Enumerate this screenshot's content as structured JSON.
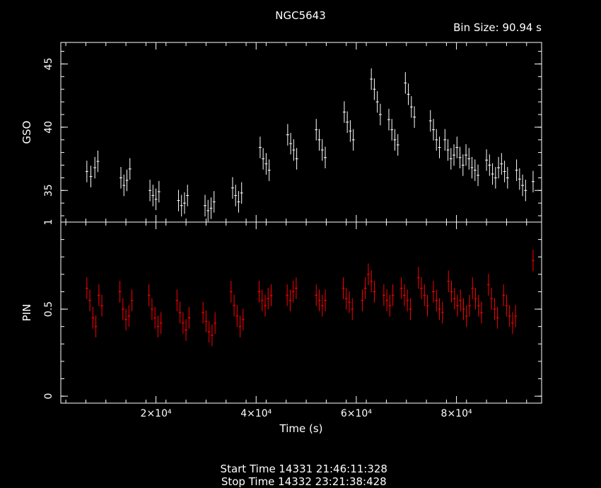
{
  "header": {
    "title": "NGC5643",
    "bin_size": "Bin Size: 90.94 s"
  },
  "footer": {
    "start_time": "Start Time 14331 21:46:11:328",
    "stop_time": "Stop Time 14332 23:21:38:428"
  },
  "colors": {
    "background": "#000000",
    "gso": "#ffffff",
    "pin": "#ff0000",
    "axes": "#ffffff"
  },
  "chart_data": [
    {
      "type": "scatter",
      "ylabel": "GSO",
      "xlabel": "",
      "ylim": [
        32.5,
        46.7
      ],
      "xlim": [
        1000,
        97000
      ],
      "yticks": [
        35,
        40,
        45
      ],
      "series": [
        {
          "points": [
            [
              6200,
              36.5
            ],
            [
              7000,
              36.1
            ],
            [
              7800,
              36.8
            ],
            [
              8400,
              37.3
            ],
            [
              13000,
              36.0
            ],
            [
              13600,
              35.4
            ],
            [
              14200,
              35.8
            ],
            [
              14800,
              36.7
            ],
            [
              18800,
              35.0
            ],
            [
              19400,
              34.6
            ],
            [
              20000,
              34.3
            ],
            [
              20600,
              34.9
            ],
            [
              24500,
              34.2
            ],
            [
              25100,
              33.8
            ],
            [
              25700,
              34.0
            ],
            [
              26300,
              34.6
            ],
            [
              29800,
              33.8
            ],
            [
              30400,
              33.4
            ],
            [
              31000,
              33.6
            ],
            [
              31600,
              34.1
            ],
            [
              35300,
              35.2
            ],
            [
              35900,
              34.6
            ],
            [
              36500,
              34.1
            ],
            [
              37100,
              34.8
            ],
            [
              40800,
              38.4
            ],
            [
              41400,
              37.5
            ],
            [
              42000,
              37.1
            ],
            [
              42600,
              36.6
            ],
            [
              46300,
              39.4
            ],
            [
              46900,
              38.7
            ],
            [
              47500,
              38.2
            ],
            [
              48100,
              37.5
            ],
            [
              52000,
              39.8
            ],
            [
              52600,
              39.0
            ],
            [
              53200,
              38.2
            ],
            [
              53800,
              37.6
            ],
            [
              57600,
              41.2
            ],
            [
              58200,
              40.4
            ],
            [
              58800,
              39.7
            ],
            [
              59400,
              39.0
            ],
            [
              63000,
              43.8
            ],
            [
              63600,
              43.0
            ],
            [
              64200,
              42.0
            ],
            [
              64800,
              41.0
            ],
            [
              66500,
              40.6
            ],
            [
              67100,
              39.8
            ],
            [
              67700,
              39.0
            ],
            [
              68300,
              38.6
            ],
            [
              69800,
              43.5
            ],
            [
              70400,
              42.6
            ],
            [
              71000,
              41.6
            ],
            [
              71600,
              40.8
            ],
            [
              74800,
              40.5
            ],
            [
              75400,
              39.8
            ],
            [
              76000,
              39.0
            ],
            [
              76600,
              38.4
            ],
            [
              77700,
              39.0
            ],
            [
              78300,
              38.2
            ],
            [
              78900,
              37.5
            ],
            [
              79500,
              37.8
            ],
            [
              80100,
              38.4
            ],
            [
              80700,
              37.6
            ],
            [
              81300,
              37.0
            ],
            [
              81900,
              37.8
            ],
            [
              82500,
              37.5
            ],
            [
              83100,
              36.8
            ],
            [
              83700,
              36.6
            ],
            [
              84300,
              36.2
            ],
            [
              86000,
              37.4
            ],
            [
              86600,
              37.0
            ],
            [
              87200,
              36.3
            ],
            [
              87800,
              36.0
            ],
            [
              88400,
              36.8
            ],
            [
              89000,
              37.1
            ],
            [
              89600,
              36.5
            ],
            [
              90200,
              36.0
            ],
            [
              92000,
              36.6
            ],
            [
              92600,
              35.9
            ],
            [
              93200,
              35.4
            ],
            [
              93800,
              35.0
            ],
            [
              95300,
              35.7
            ]
          ]
        }
      ]
    },
    {
      "type": "scatter",
      "ylabel": "PIN",
      "xlabel": "Time (s)",
      "ylim": [
        -0.04,
        1.0
      ],
      "xlim": [
        1000,
        97000
      ],
      "yticks": [
        0,
        0.5,
        1
      ],
      "xticks": [
        20000,
        40000,
        60000,
        80000
      ],
      "xticklabels": [
        "2×10⁴",
        "4×10⁴",
        "6×10⁴",
        "8×10⁴"
      ],
      "series": [
        {
          "points": [
            [
              6200,
              0.62
            ],
            [
              6800,
              0.55
            ],
            [
              7400,
              0.45
            ],
            [
              8000,
              0.4
            ],
            [
              8600,
              0.58
            ],
            [
              9200,
              0.52
            ],
            [
              12800,
              0.6
            ],
            [
              13400,
              0.5
            ],
            [
              14000,
              0.44
            ],
            [
              14600,
              0.46
            ],
            [
              15200,
              0.55
            ],
            [
              18600,
              0.58
            ],
            [
              19200,
              0.5
            ],
            [
              19800,
              0.45
            ],
            [
              20400,
              0.4
            ],
            [
              21000,
              0.42
            ],
            [
              24200,
              0.55
            ],
            [
              24800,
              0.48
            ],
            [
              25400,
              0.42
            ],
            [
              26000,
              0.38
            ],
            [
              26600,
              0.45
            ],
            [
              29400,
              0.48
            ],
            [
              30000,
              0.43
            ],
            [
              30600,
              0.37
            ],
            [
              31200,
              0.35
            ],
            [
              31800,
              0.42
            ],
            [
              35000,
              0.6
            ],
            [
              35600,
              0.52
            ],
            [
              36200,
              0.46
            ],
            [
              36800,
              0.4
            ],
            [
              37400,
              0.44
            ],
            [
              40600,
              0.6
            ],
            [
              41200,
              0.55
            ],
            [
              41800,
              0.52
            ],
            [
              42400,
              0.56
            ],
            [
              43000,
              0.58
            ],
            [
              46200,
              0.58
            ],
            [
              46800,
              0.55
            ],
            [
              47400,
              0.6
            ],
            [
              48000,
              0.62
            ],
            [
              52000,
              0.58
            ],
            [
              52600,
              0.55
            ],
            [
              53200,
              0.52
            ],
            [
              53800,
              0.55
            ],
            [
              57400,
              0.62
            ],
            [
              58000,
              0.56
            ],
            [
              58600,
              0.54
            ],
            [
              59200,
              0.5
            ],
            [
              61200,
              0.55
            ],
            [
              61800,
              0.62
            ],
            [
              62400,
              0.7
            ],
            [
              63000,
              0.66
            ],
            [
              63600,
              0.6
            ],
            [
              65500,
              0.58
            ],
            [
              66100,
              0.55
            ],
            [
              66700,
              0.52
            ],
            [
              67300,
              0.58
            ],
            [
              69000,
              0.62
            ],
            [
              69600,
              0.58
            ],
            [
              70200,
              0.55
            ],
            [
              70800,
              0.5
            ],
            [
              72400,
              0.68
            ],
            [
              73000,
              0.62
            ],
            [
              73600,
              0.58
            ],
            [
              74200,
              0.52
            ],
            [
              75400,
              0.6
            ],
            [
              76000,
              0.55
            ],
            [
              76600,
              0.5
            ],
            [
              77200,
              0.48
            ],
            [
              78400,
              0.66
            ],
            [
              79000,
              0.6
            ],
            [
              79600,
              0.56
            ],
            [
              80200,
              0.52
            ],
            [
              80800,
              0.55
            ],
            [
              81400,
              0.5
            ],
            [
              82000,
              0.46
            ],
            [
              82600,
              0.52
            ],
            [
              83200,
              0.62
            ],
            [
              83800,
              0.56
            ],
            [
              84400,
              0.52
            ],
            [
              85000,
              0.48
            ],
            [
              86400,
              0.64
            ],
            [
              87000,
              0.56
            ],
            [
              87600,
              0.5
            ],
            [
              88200,
              0.45
            ],
            [
              89400,
              0.58
            ],
            [
              90000,
              0.52
            ],
            [
              90600,
              0.46
            ],
            [
              91200,
              0.42
            ],
            [
              91800,
              0.46
            ],
            [
              95300,
              0.78
            ]
          ]
        }
      ]
    }
  ]
}
